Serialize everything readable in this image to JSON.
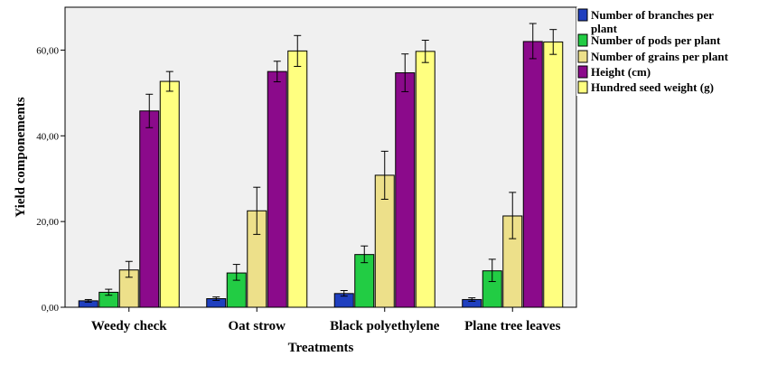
{
  "chart_data": {
    "type": "bar",
    "xlabel": "Treatments",
    "ylabel": "Yield componements",
    "ylim": [
      0,
      70
    ],
    "yticks": [
      0,
      20,
      40,
      60
    ],
    "ytick_labels": [
      "0,00",
      "20,00",
      "40,00",
      "60,00"
    ],
    "grid": false,
    "legend_position": "right",
    "categories": [
      "Weedy check",
      "Oat strow",
      "Black polyethylene",
      "Plane tree leaves"
    ],
    "series": [
      {
        "name_lines": [
          "Number of branches per",
          "plant"
        ],
        "color": "#1f3fbf",
        "values": [
          1.5,
          2.0,
          3.2,
          1.8
        ],
        "error_low": [
          1.2,
          1.6,
          2.6,
          1.4
        ],
        "error_high": [
          1.8,
          2.4,
          3.9,
          2.2
        ]
      },
      {
        "name_lines": [
          "Number of pods per plant"
        ],
        "color": "#22cc44",
        "values": [
          3.5,
          8.0,
          12.3,
          8.5
        ],
        "error_low": [
          2.8,
          6.3,
          10.4,
          6.0
        ],
        "error_high": [
          4.2,
          10.0,
          14.3,
          11.2
        ]
      },
      {
        "name_lines": [
          "Number of grains per plant"
        ],
        "color": "#ede08a",
        "values": [
          8.7,
          22.5,
          30.8,
          21.3
        ],
        "error_low": [
          7.0,
          17.0,
          25.2,
          16.0
        ],
        "error_high": [
          10.7,
          28.0,
          36.4,
          26.8
        ]
      },
      {
        "name_lines": [
          "Height (cm)"
        ],
        "color": "#8b0a8b",
        "values": [
          45.8,
          55.0,
          54.7,
          62.0
        ],
        "error_low": [
          41.9,
          52.6,
          50.3,
          58.0
        ],
        "error_high": [
          49.7,
          57.4,
          59.1,
          66.2
        ]
      },
      {
        "name_lines": [
          "Hundred seed weight (g)"
        ],
        "color": "#ffff80",
        "values": [
          52.7,
          59.8,
          59.7,
          61.9
        ],
        "error_low": [
          50.4,
          56.2,
          57.1,
          59.0
        ],
        "error_high": [
          55.0,
          63.4,
          62.3,
          64.8
        ]
      }
    ]
  }
}
